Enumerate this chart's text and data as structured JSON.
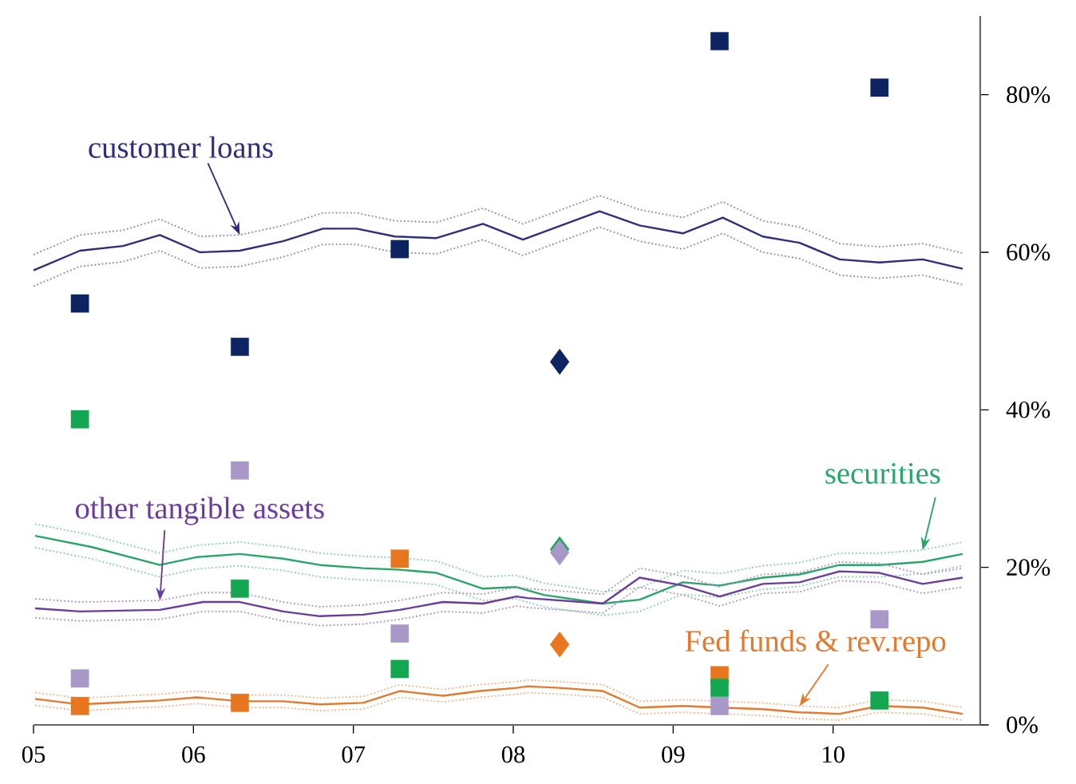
{
  "chart_data": {
    "type": "line",
    "xlim": [
      2005,
      2010.92
    ],
    "ylim": [
      0,
      90
    ],
    "xticks": [
      {
        "value": 2005,
        "label": "05"
      },
      {
        "value": 2006,
        "label": "06"
      },
      {
        "value": 2007,
        "label": "07"
      },
      {
        "value": 2008,
        "label": "08"
      },
      {
        "value": 2009,
        "label": "09"
      },
      {
        "value": 2010,
        "label": "10"
      }
    ],
    "yticks": [
      {
        "value": 0,
        "label": "0%"
      },
      {
        "value": 20,
        "label": "20%"
      },
      {
        "value": 40,
        "label": "40%"
      },
      {
        "value": 60,
        "label": "60%"
      },
      {
        "value": 80,
        "label": "80%"
      }
    ],
    "series": [
      {
        "color": "#8c8cb6",
        "line_style": "dotted",
        "x": [
          2005.0,
          2005.29,
          2005.56,
          2005.79,
          2006.04,
          2006.29,
          2006.56,
          2006.81,
          2007.02,
          2007.26,
          2007.52,
          2007.81,
          2008.06,
          2008.54,
          2008.79,
          2009.06,
          2009.31,
          2009.56,
          2009.79,
          2010.04,
          2010.29,
          2010.56,
          2010.81
        ],
        "values": [
          59.7,
          62.2,
          62.8,
          64.2,
          62.0,
          62.2,
          63.4,
          65.0,
          65.0,
          64.0,
          63.8,
          65.6,
          63.6,
          67.2,
          65.4,
          64.4,
          66.4,
          64.0,
          63.2,
          61.1,
          60.7,
          61.1,
          59.9
        ]
      },
      {
        "color": "#8c8cb6",
        "line_style": "dotted",
        "x": [
          2005.0,
          2005.29,
          2005.56,
          2005.79,
          2006.04,
          2006.29,
          2006.56,
          2006.81,
          2007.02,
          2007.26,
          2007.52,
          2007.81,
          2008.06,
          2008.54,
          2008.79,
          2009.06,
          2009.31,
          2009.56,
          2009.79,
          2010.04,
          2010.29,
          2010.56,
          2010.81
        ],
        "values": [
          55.7,
          58.2,
          58.8,
          60.2,
          58.0,
          58.2,
          59.4,
          61.0,
          61.0,
          60.0,
          59.8,
          61.6,
          59.6,
          63.2,
          61.4,
          60.4,
          62.4,
          60.0,
          59.2,
          57.1,
          56.7,
          57.1,
          55.9
        ]
      },
      {
        "color": "#2e2e7a",
        "x": [
          2005.0,
          2005.29,
          2005.56,
          2005.79,
          2006.04,
          2006.29,
          2006.56,
          2006.81,
          2007.02,
          2007.26,
          2007.52,
          2007.81,
          2008.06,
          2008.54,
          2008.79,
          2009.06,
          2009.31,
          2009.56,
          2009.79,
          2010.04,
          2010.29,
          2010.56,
          2010.81
        ],
        "values": [
          57.7,
          60.2,
          60.8,
          62.2,
          60.0,
          60.2,
          61.4,
          63.0,
          63.0,
          62.0,
          61.8,
          63.6,
          61.6,
          65.2,
          63.4,
          62.4,
          64.4,
          62.0,
          61.2,
          59.1,
          58.7,
          59.1,
          57.9
        ]
      },
      {
        "color": "#8acead",
        "line_style": "dotted",
        "x": [
          2005.01,
          2005.36,
          2005.79,
          2006.02,
          2006.29,
          2006.56,
          2006.79,
          2007.06,
          2007.29,
          2007.52,
          2007.81,
          2008.02,
          2008.19,
          2008.56,
          2008.79,
          2009.06,
          2009.29,
          2009.56,
          2009.79,
          2010.04,
          2010.29,
          2010.56,
          2010.81
        ],
        "values": [
          25.5,
          24.1,
          21.8,
          22.8,
          23.2,
          22.6,
          21.8,
          21.4,
          21.2,
          20.8,
          18.8,
          19.0,
          18.0,
          16.9,
          17.4,
          19.6,
          19.2,
          20.2,
          20.6,
          21.8,
          21.8,
          22.2,
          23.2
        ]
      },
      {
        "color": "#8acead",
        "line_style": "dotted",
        "x": [
          2005.01,
          2005.36,
          2005.79,
          2006.02,
          2006.29,
          2006.56,
          2006.79,
          2007.06,
          2007.29,
          2007.52,
          2007.81,
          2008.02,
          2008.19,
          2008.56,
          2008.79,
          2009.06,
          2009.29,
          2009.56,
          2009.79,
          2010.04,
          2010.29,
          2010.56,
          2010.81
        ],
        "values": [
          22.5,
          21.1,
          18.8,
          19.8,
          20.2,
          19.6,
          18.8,
          18.4,
          18.2,
          17.8,
          15.8,
          16.0,
          15.0,
          13.9,
          14.4,
          16.6,
          16.2,
          17.2,
          17.6,
          18.8,
          18.8,
          19.2,
          20.2
        ]
      },
      {
        "color": "#2aa56a",
        "x": [
          2005.01,
          2005.36,
          2005.79,
          2006.02,
          2006.29,
          2006.56,
          2006.79,
          2007.06,
          2007.29,
          2007.52,
          2007.81,
          2008.02,
          2008.19,
          2008.56,
          2008.79,
          2009.06,
          2009.29,
          2009.56,
          2009.79,
          2010.04,
          2010.29,
          2010.56,
          2010.81
        ],
        "values": [
          24.0,
          22.6,
          20.3,
          21.3,
          21.7,
          21.1,
          20.3,
          19.9,
          19.7,
          19.3,
          17.3,
          17.5,
          16.5,
          15.4,
          15.9,
          18.1,
          17.7,
          18.7,
          19.1,
          20.3,
          20.3,
          20.7,
          21.7
        ]
      },
      {
        "color": "#ad94c7",
        "line_style": "dotted",
        "x": [
          2005.01,
          2005.29,
          2005.79,
          2006.06,
          2006.29,
          2006.56,
          2006.79,
          2007.06,
          2007.29,
          2007.56,
          2007.81,
          2008.02,
          2008.09,
          2008.56,
          2008.79,
          2009.06,
          2009.29,
          2009.56,
          2009.79,
          2010.04,
          2010.29,
          2010.56,
          2010.81
        ],
        "values": [
          16.0,
          15.6,
          15.8,
          16.8,
          16.8,
          15.6,
          15.0,
          15.2,
          15.8,
          16.8,
          16.6,
          17.5,
          17.3,
          16.6,
          19.9,
          18.9,
          17.5,
          19.1,
          19.3,
          20.7,
          20.5,
          19.1,
          19.9
        ]
      },
      {
        "color": "#ad94c7",
        "line_style": "dotted",
        "x": [
          2005.01,
          2005.29,
          2005.79,
          2006.06,
          2006.29,
          2006.56,
          2006.79,
          2007.06,
          2007.29,
          2007.56,
          2007.81,
          2008.02,
          2008.09,
          2008.56,
          2008.79,
          2009.06,
          2009.29,
          2009.56,
          2009.79,
          2010.04,
          2010.29,
          2010.56,
          2010.81
        ],
        "values": [
          13.6,
          13.2,
          13.4,
          14.4,
          14.4,
          13.2,
          12.6,
          12.8,
          13.4,
          14.4,
          14.2,
          15.1,
          14.9,
          14.2,
          17.5,
          16.5,
          15.1,
          16.7,
          16.9,
          18.3,
          18.1,
          16.7,
          17.5
        ]
      },
      {
        "color": "#6a3d9a",
        "x": [
          2005.01,
          2005.29,
          2005.79,
          2006.06,
          2006.29,
          2006.56,
          2006.79,
          2007.06,
          2007.29,
          2007.56,
          2007.81,
          2008.02,
          2008.09,
          2008.56,
          2008.79,
          2009.06,
          2009.29,
          2009.56,
          2009.79,
          2010.04,
          2010.29,
          2010.56,
          2010.81
        ],
        "values": [
          14.8,
          14.4,
          14.6,
          15.6,
          15.6,
          14.4,
          13.8,
          14.0,
          14.6,
          15.6,
          15.4,
          16.3,
          16.1,
          15.4,
          18.7,
          17.7,
          16.3,
          17.9,
          18.1,
          19.5,
          19.3,
          17.9,
          18.7
        ]
      },
      {
        "color": "#eeb68d",
        "line_style": "dotted",
        "x": [
          2005.01,
          2005.29,
          2005.79,
          2006.02,
          2006.29,
          2006.56,
          2006.79,
          2007.06,
          2007.29,
          2007.56,
          2007.79,
          2008.02,
          2008.09,
          2008.29,
          2008.56,
          2008.79,
          2009.06,
          2009.29,
          2009.56,
          2009.79,
          2010.04,
          2010.29,
          2010.56,
          2010.81
        ],
        "values": [
          4.1,
          3.4,
          3.9,
          4.3,
          3.8,
          3.8,
          3.4,
          3.6,
          5.1,
          4.5,
          5.1,
          5.5,
          5.7,
          5.5,
          5.1,
          3.0,
          3.2,
          3.0,
          2.8,
          2.4,
          2.2,
          3.2,
          3.0,
          2.2
        ]
      },
      {
        "color": "#eeb68d",
        "line_style": "dotted",
        "x": [
          2005.01,
          2005.29,
          2005.79,
          2006.02,
          2006.29,
          2006.56,
          2006.79,
          2007.06,
          2007.29,
          2007.56,
          2007.79,
          2008.02,
          2008.09,
          2008.29,
          2008.56,
          2008.79,
          2009.06,
          2009.29,
          2009.56,
          2009.79,
          2010.04,
          2010.29,
          2010.56,
          2010.81
        ],
        "values": [
          2.5,
          1.8,
          2.3,
          2.7,
          2.2,
          2.2,
          1.8,
          2.0,
          3.5,
          2.9,
          3.5,
          3.9,
          4.1,
          3.9,
          3.5,
          1.4,
          1.6,
          1.4,
          1.2,
          0.8,
          0.6,
          1.6,
          1.4,
          0.6
        ]
      },
      {
        "color": "#e07a30",
        "x": [
          2005.01,
          2005.29,
          2005.79,
          2006.02,
          2006.29,
          2006.56,
          2006.79,
          2007.06,
          2007.29,
          2007.56,
          2007.79,
          2008.02,
          2008.09,
          2008.29,
          2008.56,
          2008.79,
          2009.06,
          2009.29,
          2009.56,
          2009.79,
          2010.04,
          2010.29,
          2010.56,
          2010.81
        ],
        "values": [
          3.3,
          2.6,
          3.1,
          3.5,
          3.0,
          3.0,
          2.6,
          2.8,
          4.3,
          3.7,
          4.3,
          4.7,
          4.9,
          4.7,
          4.3,
          2.2,
          2.4,
          2.2,
          2.0,
          1.6,
          1.4,
          2.4,
          2.2,
          1.4
        ]
      },
      {
        "type": "scatter",
        "marker": "square",
        "color": "#e8761e",
        "x": [
          2005.29,
          2006.29,
          2007.29,
          2009.29
        ],
        "values": [
          2.4,
          2.8,
          21.1,
          6.3
        ]
      },
      {
        "type": "scatter",
        "marker": "square",
        "color": "#14a650",
        "x": [
          2005.29,
          2006.29,
          2007.29,
          2009.29,
          2010.29
        ],
        "values": [
          38.8,
          17.3,
          7.1,
          4.7,
          3.1
        ]
      },
      {
        "type": "scatter",
        "marker": "square",
        "color": "#a898c8",
        "x": [
          2005.29,
          2006.29,
          2007.29,
          2009.29,
          2010.29
        ],
        "values": [
          5.9,
          32.3,
          11.6,
          2.4,
          13.4
        ]
      },
      {
        "type": "scatter",
        "marker": "square",
        "color": "#0c2461",
        "x": [
          2005.29,
          2006.29,
          2007.29,
          2009.29,
          2010.29
        ],
        "values": [
          53.5,
          48.0,
          60.4,
          86.8,
          80.9
        ]
      },
      {
        "type": "scatter",
        "marker": "diamond",
        "color": "#0c2461",
        "x": [
          2008.29
        ],
        "values": [
          46.1
        ]
      },
      {
        "type": "scatter",
        "marker": "diamond",
        "color": "#e8761e",
        "x": [
          2008.29
        ],
        "values": [
          10.2
        ]
      },
      {
        "type": "scatter",
        "marker": "diamond",
        "color": "#14a650",
        "x": [
          2008.29
        ],
        "values": [
          22.3
        ]
      },
      {
        "type": "scatter",
        "marker": "diamond",
        "color": "#a898c8",
        "x": [
          2008.29
        ],
        "values": [
          21.9
        ]
      }
    ],
    "annotations": [
      {
        "text": "customer loans",
        "x": 2006.29,
        "y": 62.2
      },
      {
        "text": "other tangible assets",
        "x": 2005.79,
        "y": 15.8
      },
      {
        "text": "securities",
        "x": 2010.56,
        "y": 22.2
      },
      {
        "text": "Fed funds & rev.repo",
        "x": 2009.79,
        "y": 2.4
      }
    ]
  }
}
